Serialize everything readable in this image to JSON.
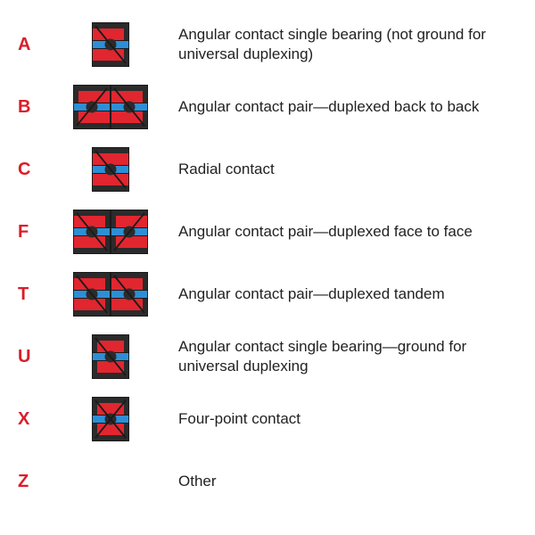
{
  "colors": {
    "code": "#d91e2a",
    "text": "#222222",
    "bearing_red": "#e1262f",
    "bearing_blue": "#2c8fd6",
    "bearing_dark": "#2b2b2b",
    "stroke": "#1a1a1a",
    "bg": "#ffffff"
  },
  "typography": {
    "code_fontsize": 20,
    "code_weight": 700,
    "desc_fontsize": 17
  },
  "rows": [
    {
      "code": "A",
      "desc": "Angular contact single bearing (not ground for universal duplexing)",
      "icon": "single_angular"
    },
    {
      "code": "B",
      "desc": "Angular contact pair—duplexed back to back",
      "icon": "back_to_back"
    },
    {
      "code": "C",
      "desc": "Radial contact",
      "icon": "radial"
    },
    {
      "code": "F",
      "desc": "Angular contact pair—duplexed face to face",
      "icon": "face_to_face"
    },
    {
      "code": "T",
      "desc": "Angular contact pair—duplexed tandem",
      "icon": "tandem"
    },
    {
      "code": "U",
      "desc": "Angular contact single bearing—ground for universal duplexing",
      "icon": "universal"
    },
    {
      "code": "X",
      "desc": "Four-point contact",
      "icon": "four_point"
    },
    {
      "code": "Z",
      "desc": "Other",
      "icon": "none"
    }
  ],
  "icon_style": {
    "single_w": 42,
    "single_h": 50,
    "pair_w": 84,
    "pair_h": 50,
    "stroke_width": 1.8
  }
}
